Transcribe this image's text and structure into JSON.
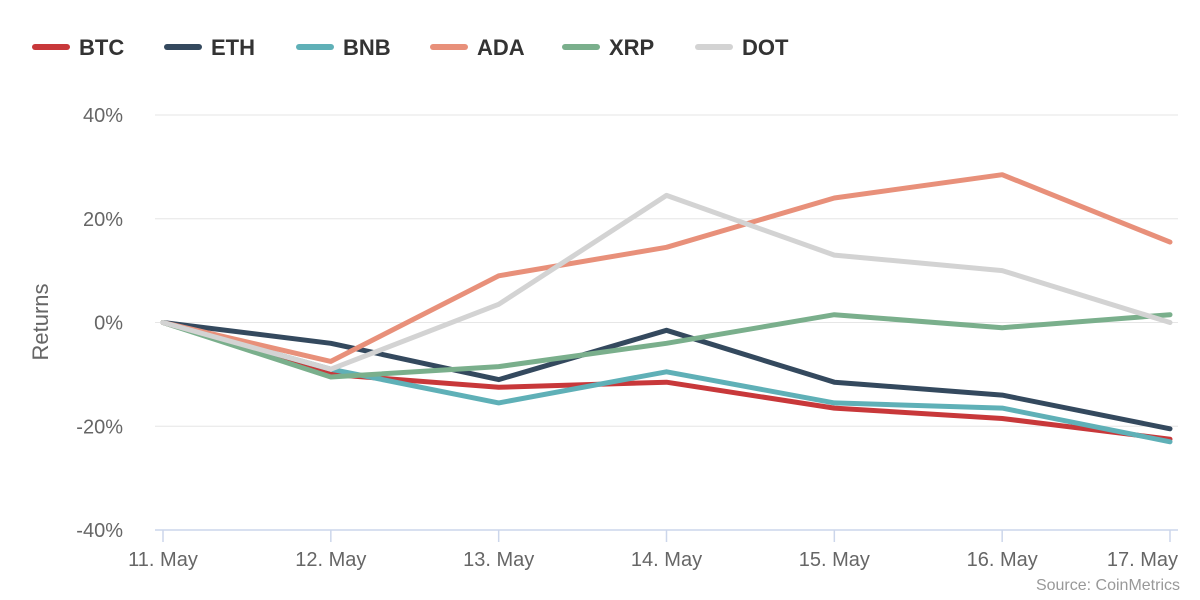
{
  "chart_data": {
    "type": "line",
    "title": "",
    "xlabel": "",
    "ylabel": "Returns",
    "ylim": [
      -40,
      40
    ],
    "y_ticks": [
      -40,
      -20,
      0,
      20,
      40
    ],
    "y_tick_labels": [
      "-40%",
      "-20%",
      "0%",
      "20%",
      "40%"
    ],
    "categories": [
      "11. May",
      "12. May",
      "13. May",
      "14. May",
      "15. May",
      "16. May",
      "17. May"
    ],
    "grid": true,
    "legend_position": "top-left",
    "series": [
      {
        "name": "BTC",
        "color": "#c8383a",
        "values": [
          0,
          -10,
          -12.5,
          -11.5,
          -16.5,
          -18.5,
          -22.5
        ]
      },
      {
        "name": "ETH",
        "color": "#34495e",
        "values": [
          0,
          -4,
          -11,
          -1.5,
          -11.5,
          -14,
          -20.5
        ]
      },
      {
        "name": "BNB",
        "color": "#5fb0b7",
        "values": [
          0,
          -9,
          -15.5,
          -9.5,
          -15.5,
          -16.5,
          -23
        ]
      },
      {
        "name": "ADA",
        "color": "#e8907a",
        "values": [
          0,
          -7.5,
          9,
          14.5,
          24,
          28.5,
          15.5
        ]
      },
      {
        "name": "XRP",
        "color": "#7aaf8c",
        "values": [
          0,
          -10.5,
          -8.5,
          -4,
          1.5,
          -1,
          1.5
        ]
      },
      {
        "name": "DOT",
        "color": "#d3d3d3",
        "values": [
          0,
          -9,
          3.5,
          24.5,
          13,
          10,
          0
        ]
      }
    ],
    "source": "Source: CoinMetrics"
  }
}
